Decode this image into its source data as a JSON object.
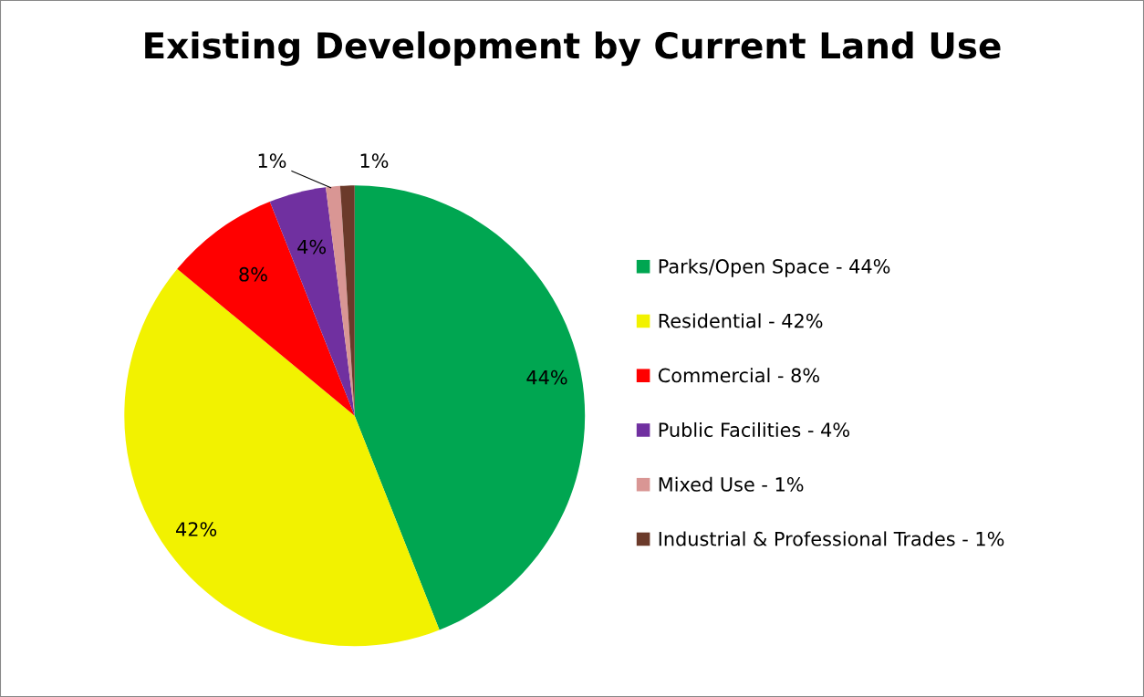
{
  "chart_data": {
    "type": "pie",
    "title": "Existing Development by Current Land Use",
    "categories": [
      "Parks/Open Space - 44%",
      "Residential - 42%",
      "Commercial - 8%",
      "Public Facilities - 4%",
      "Mixed Use - 1%",
      "Industrial & Professional Trades - 1%"
    ],
    "values": [
      44,
      42,
      8,
      4,
      1,
      1
    ],
    "colors": [
      "#00a651",
      "#f2f200",
      "#ff0000",
      "#7030a0",
      "#d99694",
      "#6b3a2a"
    ],
    "value_labels": [
      "44%",
      "42%",
      "8%",
      "4%",
      "1%",
      "1%"
    ],
    "legend": "right"
  }
}
